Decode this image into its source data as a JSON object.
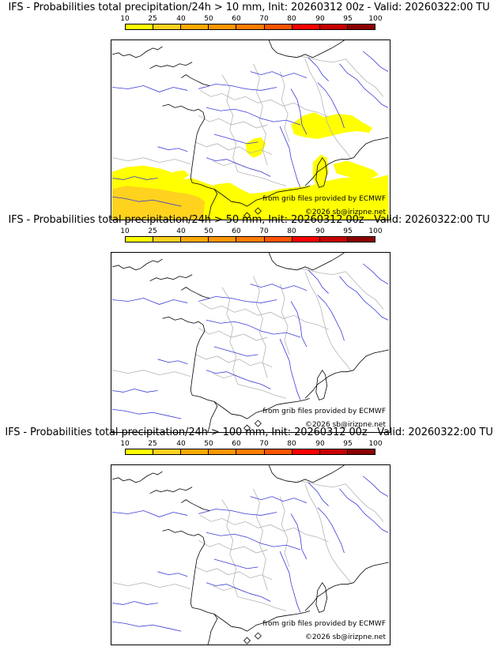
{
  "panels": [
    {
      "title": "IFS - Probabilities total precipitation/24h > 10 mm, Init: 20260312 00z - Valid: 20260322:00 TU",
      "has_precip": true
    },
    {
      "title": "IFS - Probabilities total precipitation/24h > 50 mm, Init: 20260312 00z - Valid: 20260322:00 TU",
      "has_precip": false
    },
    {
      "title": "IFS - Probabilities total precipitation/24h > 100 mm, Init: 20260312 00z - Valid: 20260322:00 TU",
      "has_precip": false
    }
  ],
  "colorbar": {
    "labels": [
      "10",
      "25",
      "40",
      "50",
      "60",
      "70",
      "80",
      "90",
      "95",
      "100"
    ],
    "colors": [
      "#ffff00",
      "#ffd21e",
      "#ffaa00",
      "#ff9600",
      "#ff7d00",
      "#ff5500",
      "#ff0000",
      "#c80000",
      "#8c0000",
      "#500000"
    ]
  },
  "credit_source": "from grib files provided by ECMWF",
  "credit_copyright": "©2026 sb@irizpne.net",
  "colors": {
    "coast": "#000000",
    "rivers": "#3a3ad8",
    "borders": "#b4b4b4",
    "precip_light": "#ffff00",
    "precip_mid": "#ffd21e"
  }
}
